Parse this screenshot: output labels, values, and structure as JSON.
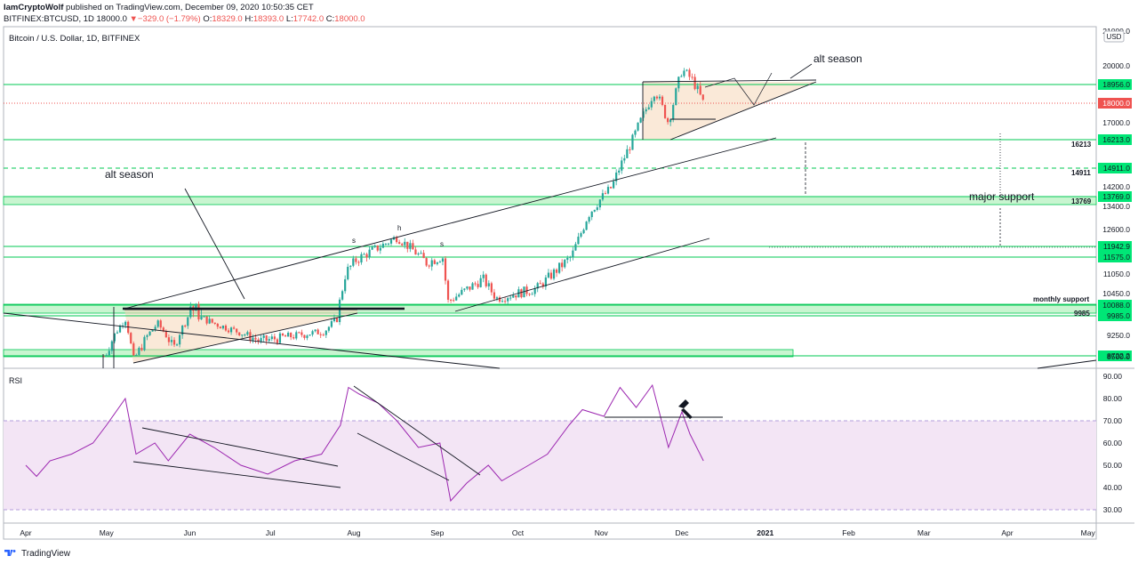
{
  "header": {
    "author": "IamCryptoWolf",
    "published": "published on TradingView.com, December 09, 2020 10:50:35 CET",
    "symbol": "BITFINEX:BTCUSD, 1D",
    "close_inline": "18000.0",
    "change": "−329.0 (−1.79%)",
    "o_label": "O:",
    "o_value": "18329.0",
    "h_label": "H:",
    "h_value": "18393.0",
    "l_label": "L:",
    "l_value": "17742.0",
    "c_label": "C:",
    "c_value": "18000.0"
  },
  "footer": {
    "brand": "TradingView"
  },
  "colors": {
    "up": "#26a69a",
    "down": "#ef5350",
    "level": "#00c853",
    "rsi": "#9c27b0",
    "rsi_band": "#f3e5f5"
  },
  "chart_data": [
    {
      "type": "candlestick",
      "title": "Bitcoin / U.S. Dollar, 1D, BITFINEX",
      "currency": "USD",
      "x_ticks": [
        "Apr",
        "May",
        "Jun",
        "Jul",
        "Aug",
        "Sep",
        "Oct",
        "Nov",
        "Dec",
        "2021",
        "Feb",
        "Mar",
        "Apr",
        "May"
      ],
      "y_ticks": [
        "20000.0",
        "17000.0",
        "14200.0",
        "13400.0",
        "12600.0",
        "11050.0",
        "10450.0",
        "9250.0",
        "8500.0"
      ],
      "top_tick": "21000.0",
      "grid": false,
      "levels": [
        {
          "value": "18956.0",
          "price": 18956
        },
        {
          "value": "16213.0",
          "price": 16213
        },
        {
          "value": "14911.0",
          "price": 14911,
          "dashed": true
        },
        {
          "value": "13769.0",
          "price": 13769
        },
        {
          "value": "11942.9",
          "price": 11942.9
        },
        {
          "value": "11575.0",
          "price": 11575
        },
        {
          "value": "10088.0",
          "price": 10088
        },
        {
          "value": "9985.0",
          "price": 9985
        },
        {
          "value": "8722.2",
          "price": 8722.2
        }
      ],
      "current_price": {
        "value": "18000.0",
        "price": 18000
      },
      "labels": [
        {
          "text": "16213"
        },
        {
          "text": "14911"
        },
        {
          "text": "13769"
        },
        {
          "text": "monthly support"
        },
        {
          "text": "9985"
        }
      ],
      "annotations": [
        "alt season",
        "alt season",
        "major support",
        "s",
        "h",
        "s"
      ],
      "price_path": [
        [
          "2020-04-30",
          8650
        ],
        [
          "2020-05-08",
          9900
        ],
        [
          "2020-05-11",
          8600
        ],
        [
          "2020-05-20",
          9700
        ],
        [
          "2020-05-26",
          8900
        ],
        [
          "2020-06-01",
          10100
        ],
        [
          "2020-06-10",
          9700
        ],
        [
          "2020-06-27",
          9100
        ],
        [
          "2020-07-10",
          9250
        ],
        [
          "2020-07-21",
          9400
        ],
        [
          "2020-07-26",
          9900
        ],
        [
          "2020-07-29",
          11100
        ],
        [
          "2020-08-02",
          11500
        ],
        [
          "2020-08-10",
          11900
        ],
        [
          "2020-08-17",
          12300
        ],
        [
          "2020-08-28",
          11400
        ],
        [
          "2020-09-03",
          11600
        ],
        [
          "2020-09-05",
          10200
        ],
        [
          "2020-09-18",
          10900
        ],
        [
          "2020-09-23",
          10300
        ],
        [
          "2020-10-08",
          10600
        ],
        [
          "2020-10-21",
          11600
        ],
        [
          "2020-10-27",
          13100
        ],
        [
          "2020-11-05",
          14200
        ],
        [
          "2020-11-13",
          16300
        ],
        [
          "2020-11-21",
          18700
        ],
        [
          "2020-11-26",
          17000
        ],
        [
          "2020-12-01",
          19800
        ],
        [
          "2020-12-05",
          19200
        ],
        [
          "2020-12-09",
          18000
        ]
      ]
    },
    {
      "type": "line",
      "title": "RSI",
      "y_ticks": [
        "90.00",
        "80.00",
        "70.00",
        "60.00",
        "50.00",
        "40.00",
        "30.00"
      ],
      "band": [
        30,
        70
      ],
      "series": [
        {
          "values": [
            [
              "2020-04-01",
              50
            ],
            [
              "2020-04-05",
              45
            ],
            [
              "2020-04-10",
              52
            ],
            [
              "2020-04-18",
              55
            ],
            [
              "2020-04-26",
              60
            ],
            [
              "2020-05-01",
              68
            ],
            [
              "2020-05-08",
              80
            ],
            [
              "2020-05-12",
              55
            ],
            [
              "2020-05-19",
              60
            ],
            [
              "2020-05-24",
              52
            ],
            [
              "2020-06-01",
              64
            ],
            [
              "2020-06-10",
              58
            ],
            [
              "2020-06-20",
              50
            ],
            [
              "2020-06-30",
              46
            ],
            [
              "2020-07-10",
              52
            ],
            [
              "2020-07-20",
              55
            ],
            [
              "2020-07-27",
              68
            ],
            [
              "2020-07-30",
              85
            ],
            [
              "2020-08-03",
              82
            ],
            [
              "2020-08-10",
              78
            ],
            [
              "2020-08-17",
              70
            ],
            [
              "2020-08-25",
              58
            ],
            [
              "2020-09-02",
              60
            ],
            [
              "2020-09-06",
              34
            ],
            [
              "2020-09-12",
              42
            ],
            [
              "2020-09-20",
              50
            ],
            [
              "2020-09-25",
              43
            ],
            [
              "2020-10-05",
              50
            ],
            [
              "2020-10-12",
              55
            ],
            [
              "2020-10-20",
              68
            ],
            [
              "2020-10-25",
              75
            ],
            [
              "2020-11-02",
              72
            ],
            [
              "2020-11-08",
              85
            ],
            [
              "2020-11-14",
              76
            ],
            [
              "2020-11-20",
              86
            ],
            [
              "2020-11-26",
              58
            ],
            [
              "2020-12-01",
              74
            ],
            [
              "2020-12-04",
              64
            ],
            [
              "2020-12-09",
              52
            ]
          ]
        }
      ]
    }
  ]
}
